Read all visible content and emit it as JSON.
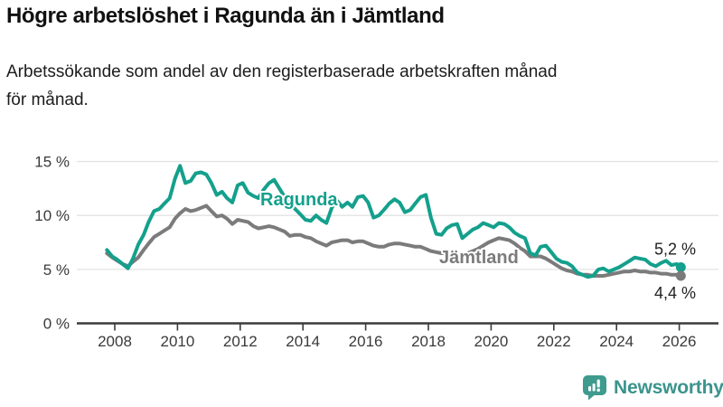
{
  "page": {
    "title": "Högre arbetslöshet i Ragunda än i Jämtland",
    "subtitle_line1": "Arbetssökande som andel av den registerbaserade arbetskraften månad",
    "subtitle_line2": "för månad."
  },
  "chart_data": {
    "type": "line",
    "title": "Högre arbetslöshet i Ragunda än i Jämtland",
    "subtitle": "Arbetssökande som andel av den registerbaserade arbetskraften månad för månad.",
    "xlabel": "",
    "ylabel": "%",
    "ylim": [
      0,
      16
    ],
    "xlim": [
      2007.4,
      2026.6
    ],
    "grid": true,
    "legend_position": "inline-labels-on-lines",
    "x_ticks": [
      2008,
      2010,
      2012,
      2014,
      2016,
      2018,
      2020,
      2022,
      2024,
      2026
    ],
    "y_ticks": [
      {
        "value": 0,
        "label": "0 %"
      },
      {
        "value": 5,
        "label": "5 %"
      },
      {
        "value": 10,
        "label": "10 %"
      },
      {
        "value": 15,
        "label": "15 %"
      }
    ],
    "x": [
      2007.75,
      2007.92,
      2008.08,
      2008.25,
      2008.42,
      2008.58,
      2008.75,
      2008.92,
      2009.08,
      2009.25,
      2009.42,
      2009.58,
      2009.75,
      2009.92,
      2010.08,
      2010.25,
      2010.42,
      2010.58,
      2010.75,
      2010.92,
      2011.08,
      2011.25,
      2011.42,
      2011.58,
      2011.75,
      2011.92,
      2012.08,
      2012.25,
      2012.42,
      2012.58,
      2012.75,
      2012.92,
      2013.08,
      2013.25,
      2013.42,
      2013.58,
      2013.75,
      2013.92,
      2014.08,
      2014.25,
      2014.42,
      2014.58,
      2014.75,
      2014.92,
      2015.08,
      2015.25,
      2015.42,
      2015.58,
      2015.75,
      2015.92,
      2016.08,
      2016.25,
      2016.42,
      2016.58,
      2016.75,
      2016.92,
      2017.08,
      2017.25,
      2017.42,
      2017.58,
      2017.75,
      2017.92,
      2018.08,
      2018.25,
      2018.42,
      2018.58,
      2018.75,
      2018.92,
      2019.08,
      2019.25,
      2019.42,
      2019.58,
      2019.75,
      2019.92,
      2020.08,
      2020.25,
      2020.42,
      2020.58,
      2020.75,
      2020.92,
      2021.08,
      2021.25,
      2021.42,
      2021.58,
      2021.75,
      2021.92,
      2022.08,
      2022.25,
      2022.42,
      2022.58,
      2022.75,
      2022.92,
      2023.08,
      2023.25,
      2023.42,
      2023.58,
      2023.75,
      2023.92,
      2024.08,
      2024.25,
      2024.42,
      2024.58,
      2024.75,
      2024.92,
      2025.08,
      2025.25,
      2025.42,
      2025.58,
      2025.75,
      2025.92,
      2026.05
    ],
    "series": [
      {
        "name": "Ragunda",
        "color": "#14a08c",
        "end_label": "5,2 %",
        "end_value": 5.2,
        "values": [
          6.8,
          6.2,
          5.9,
          5.5,
          5.1,
          6.0,
          7.3,
          8.2,
          9.4,
          10.4,
          10.6,
          11.1,
          11.6,
          13.4,
          14.6,
          13.0,
          13.2,
          13.9,
          14.0,
          13.8,
          13.0,
          11.9,
          12.2,
          11.6,
          11.2,
          12.8,
          13.0,
          12.1,
          11.8,
          11.6,
          12.4,
          13.0,
          13.3,
          12.5,
          11.7,
          11.0,
          10.6,
          10.1,
          9.6,
          9.5,
          10.0,
          9.6,
          9.3,
          10.7,
          11.4,
          10.8,
          11.2,
          10.8,
          11.7,
          11.8,
          11.2,
          9.8,
          10.0,
          10.5,
          11.1,
          11.5,
          11.2,
          10.3,
          10.5,
          11.1,
          11.7,
          11.9,
          9.8,
          8.3,
          8.2,
          8.8,
          9.1,
          9.2,
          7.9,
          8.3,
          8.7,
          8.9,
          9.3,
          9.1,
          8.9,
          9.3,
          9.2,
          8.9,
          8.4,
          8.1,
          7.9,
          6.5,
          6.3,
          7.1,
          7.2,
          6.6,
          6.0,
          5.7,
          5.6,
          5.3,
          4.7,
          4.5,
          4.3,
          4.4,
          5.0,
          5.1,
          4.8,
          5.0,
          5.2,
          5.5,
          5.8,
          6.1,
          6.0,
          5.9,
          5.5,
          5.3,
          5.6,
          5.8,
          5.4,
          5.5,
          5.2
        ]
      },
      {
        "name": "Jämtland",
        "color": "#7b7b7b",
        "end_label": "4,4 %",
        "end_value": 4.4,
        "values": [
          6.5,
          6.1,
          5.8,
          5.5,
          5.3,
          5.7,
          6.1,
          6.8,
          7.4,
          8.0,
          8.3,
          8.6,
          8.9,
          9.7,
          10.2,
          10.6,
          10.4,
          10.5,
          10.7,
          10.9,
          10.4,
          9.9,
          10.0,
          9.7,
          9.2,
          9.6,
          9.5,
          9.4,
          9.0,
          8.8,
          8.9,
          9.0,
          8.9,
          8.7,
          8.5,
          8.1,
          8.2,
          8.2,
          8.0,
          7.9,
          7.6,
          7.4,
          7.2,
          7.5,
          7.6,
          7.7,
          7.7,
          7.5,
          7.6,
          7.6,
          7.4,
          7.2,
          7.1,
          7.1,
          7.3,
          7.4,
          7.4,
          7.3,
          7.2,
          7.1,
          7.1,
          6.9,
          6.7,
          6.6,
          6.5,
          6.5,
          6.5,
          6.4,
          6.4,
          6.5,
          6.7,
          6.9,
          7.2,
          7.5,
          7.7,
          7.9,
          7.8,
          7.7,
          7.4,
          7.0,
          6.7,
          6.2,
          6.2,
          6.2,
          6.0,
          5.7,
          5.4,
          5.1,
          4.9,
          4.8,
          4.6,
          4.5,
          4.5,
          4.4,
          4.4,
          4.4,
          4.5,
          4.6,
          4.7,
          4.8,
          4.8,
          4.9,
          4.8,
          4.8,
          4.7,
          4.7,
          4.6,
          4.6,
          4.5,
          4.5,
          4.4
        ]
      }
    ]
  },
  "branding": {
    "name": "Newsworthy"
  },
  "colors": {
    "accent_teal": "#14a08c",
    "series_gray": "#7b7b7b",
    "axis": "#3b3b3b",
    "gridline": "#e3e3e3",
    "title_text": "#111111",
    "logo_teal": "#3e9b8e",
    "brand_text": "#3b948d"
  }
}
